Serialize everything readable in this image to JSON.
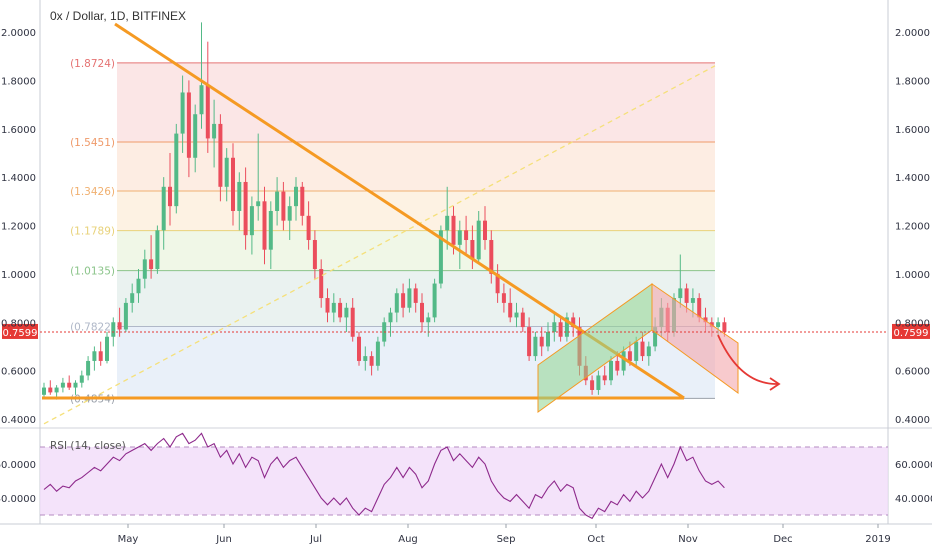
{
  "chart_data": [
    {
      "type": "candlestick",
      "title": "0x / Dollar, 1D, BITFINEX",
      "ylim": [
        0.38,
        2.1
      ],
      "y_ticks": [
        "2.0000",
        "1.8000",
        "1.6000",
        "1.4000",
        "1.2000",
        "1.0000",
        "0.8000",
        "0.6000",
        "0.4000"
      ],
      "y_tick_values": [
        2.0,
        1.8,
        1.6,
        1.4,
        1.2,
        1.0,
        0.8,
        0.6,
        0.4
      ],
      "x_ticks": [
        "May",
        "Jun",
        "Jul",
        "Aug",
        "Sep",
        "Oct",
        "Nov",
        "Dec",
        "2019"
      ],
      "last_price": "0.7599",
      "last_price_value": 0.7599,
      "fib_levels": [
        {
          "label": "(1.8724)",
          "value": 1.8724,
          "color": "#e57373"
        },
        {
          "label": "(1.5451)",
          "value": 1.5451,
          "color": "#ef9a6a"
        },
        {
          "label": "(1.3426)",
          "value": 1.3426,
          "color": "#f0b070"
        },
        {
          "label": "(1.1789)",
          "value": 1.1789,
          "color": "#e8d27a"
        },
        {
          "label": "(1.0135)",
          "value": 1.0135,
          "color": "#8bc48a"
        },
        {
          "label": "(0.7822)",
          "value": 0.7822,
          "color": "#b0b8c8"
        },
        {
          "label": "(0.4854)",
          "value": 0.4854,
          "color": "#9aa0aa"
        }
      ],
      "candles": [
        [
          0.5,
          0.55,
          0.49,
          0.53
        ],
        [
          0.53,
          0.56,
          0.5,
          0.51
        ],
        [
          0.51,
          0.54,
          0.48,
          0.53
        ],
        [
          0.53,
          0.57,
          0.51,
          0.55
        ],
        [
          0.55,
          0.58,
          0.52,
          0.53
        ],
        [
          0.53,
          0.56,
          0.5,
          0.55
        ],
        [
          0.55,
          0.6,
          0.53,
          0.58
        ],
        [
          0.58,
          0.66,
          0.56,
          0.64
        ],
        [
          0.64,
          0.7,
          0.6,
          0.68
        ],
        [
          0.68,
          0.72,
          0.62,
          0.64
        ],
        [
          0.64,
          0.76,
          0.63,
          0.74
        ],
        [
          0.74,
          0.82,
          0.7,
          0.8
        ],
        [
          0.8,
          0.86,
          0.74,
          0.77
        ],
        [
          0.77,
          0.9,
          0.76,
          0.88
        ],
        [
          0.88,
          0.96,
          0.84,
          0.92
        ],
        [
          0.92,
          1.02,
          0.88,
          0.98
        ],
        [
          0.98,
          1.1,
          0.94,
          1.06
        ],
        [
          1.06,
          1.16,
          0.98,
          1.02
        ],
        [
          1.02,
          1.2,
          1.0,
          1.18
        ],
        [
          1.18,
          1.4,
          1.1,
          1.36
        ],
        [
          1.36,
          1.5,
          1.2,
          1.28
        ],
        [
          1.28,
          1.62,
          1.25,
          1.58
        ],
        [
          1.58,
          1.82,
          1.5,
          1.75
        ],
        [
          1.75,
          1.8,
          1.4,
          1.48
        ],
        [
          1.48,
          1.7,
          1.42,
          1.66
        ],
        [
          1.66,
          2.04,
          1.6,
          1.78
        ],
        [
          1.78,
          1.96,
          1.5,
          1.56
        ],
        [
          1.56,
          1.72,
          1.44,
          1.62
        ],
        [
          1.62,
          1.66,
          1.3,
          1.36
        ],
        [
          1.36,
          1.52,
          1.3,
          1.48
        ],
        [
          1.48,
          1.54,
          1.2,
          1.26
        ],
        [
          1.26,
          1.42,
          1.18,
          1.38
        ],
        [
          1.38,
          1.44,
          1.1,
          1.16
        ],
        [
          1.16,
          1.32,
          1.08,
          1.28
        ],
        [
          1.28,
          1.58,
          1.22,
          1.3
        ],
        [
          1.3,
          1.36,
          1.04,
          1.1
        ],
        [
          1.1,
          1.3,
          1.02,
          1.26
        ],
        [
          1.26,
          1.4,
          1.2,
          1.34
        ],
        [
          1.34,
          1.38,
          1.18,
          1.22
        ],
        [
          1.22,
          1.32,
          1.14,
          1.28
        ],
        [
          1.28,
          1.4,
          1.22,
          1.36
        ],
        [
          1.36,
          1.38,
          1.2,
          1.24
        ],
        [
          1.24,
          1.3,
          1.1,
          1.14
        ],
        [
          1.14,
          1.18,
          0.98,
          1.02
        ],
        [
          1.02,
          1.06,
          0.86,
          0.9
        ],
        [
          0.9,
          0.94,
          0.8,
          0.84
        ],
        [
          0.84,
          0.92,
          0.8,
          0.88
        ],
        [
          0.88,
          0.9,
          0.8,
          0.82
        ],
        [
          0.82,
          0.88,
          0.76,
          0.86
        ],
        [
          0.86,
          0.9,
          0.72,
          0.74
        ],
        [
          0.74,
          0.76,
          0.62,
          0.64
        ],
        [
          0.64,
          0.7,
          0.6,
          0.66
        ],
        [
          0.66,
          0.68,
          0.58,
          0.62
        ],
        [
          0.62,
          0.74,
          0.6,
          0.72
        ],
        [
          0.72,
          0.82,
          0.7,
          0.8
        ],
        [
          0.8,
          0.86,
          0.74,
          0.84
        ],
        [
          0.84,
          0.94,
          0.8,
          0.92
        ],
        [
          0.92,
          0.96,
          0.82,
          0.86
        ],
        [
          0.86,
          0.98,
          0.84,
          0.94
        ],
        [
          0.94,
          0.96,
          0.84,
          0.88
        ],
        [
          0.88,
          0.92,
          0.76,
          0.8
        ],
        [
          0.8,
          0.84,
          0.74,
          0.82
        ],
        [
          0.82,
          0.98,
          0.8,
          0.96
        ],
        [
          0.96,
          1.2,
          0.94,
          1.18
        ],
        [
          1.18,
          1.36,
          1.1,
          1.24
        ],
        [
          1.24,
          1.28,
          1.08,
          1.12
        ],
        [
          1.12,
          1.22,
          1.02,
          1.18
        ],
        [
          1.18,
          1.24,
          1.08,
          1.14
        ],
        [
          1.14,
          1.2,
          1.02,
          1.06
        ],
        [
          1.06,
          1.26,
          1.04,
          1.22
        ],
        [
          1.22,
          1.28,
          1.1,
          1.14
        ],
        [
          1.14,
          1.18,
          0.96,
          1.0
        ],
        [
          1.0,
          1.04,
          0.88,
          0.92
        ],
        [
          0.92,
          0.96,
          0.84,
          0.88
        ],
        [
          0.88,
          0.94,
          0.8,
          0.82
        ],
        [
          0.82,
          0.88,
          0.78,
          0.84
        ],
        [
          0.84,
          0.86,
          0.76,
          0.78
        ],
        [
          0.78,
          0.82,
          0.64,
          0.66
        ],
        [
          0.66,
          0.76,
          0.64,
          0.74
        ],
        [
          0.74,
          0.78,
          0.66,
          0.7
        ],
        [
          0.7,
          0.8,
          0.68,
          0.76
        ],
        [
          0.76,
          0.84,
          0.72,
          0.8
        ],
        [
          0.8,
          0.82,
          0.72,
          0.74
        ],
        [
          0.74,
          0.84,
          0.72,
          0.82
        ],
        [
          0.82,
          0.84,
          0.74,
          0.78
        ],
        [
          0.78,
          0.82,
          0.58,
          0.62
        ],
        [
          0.62,
          0.66,
          0.54,
          0.56
        ],
        [
          0.56,
          0.58,
          0.5,
          0.52
        ],
        [
          0.52,
          0.6,
          0.5,
          0.58
        ],
        [
          0.58,
          0.62,
          0.54,
          0.56
        ],
        [
          0.56,
          0.66,
          0.54,
          0.64
        ],
        [
          0.64,
          0.68,
          0.58,
          0.6
        ],
        [
          0.6,
          0.7,
          0.58,
          0.68
        ],
        [
          0.68,
          0.72,
          0.62,
          0.64
        ],
        [
          0.64,
          0.74,
          0.62,
          0.72
        ],
        [
          0.72,
          0.76,
          0.64,
          0.66
        ],
        [
          0.66,
          0.72,
          0.62,
          0.7
        ],
        [
          0.7,
          0.82,
          0.68,
          0.78
        ],
        [
          0.78,
          0.9,
          0.74,
          0.86
        ],
        [
          0.86,
          0.88,
          0.72,
          0.76
        ],
        [
          0.76,
          0.92,
          0.74,
          0.9
        ],
        [
          0.9,
          1.08,
          0.86,
          0.94
        ],
        [
          0.94,
          0.96,
          0.84,
          0.88
        ],
        [
          0.88,
          0.94,
          0.82,
          0.9
        ],
        [
          0.9,
          0.92,
          0.8,
          0.82
        ],
        [
          0.82,
          0.86,
          0.76,
          0.8
        ],
        [
          0.8,
          0.82,
          0.74,
          0.78
        ],
        [
          0.78,
          0.82,
          0.74,
          0.8
        ],
        [
          0.8,
          0.82,
          0.74,
          0.76
        ]
      ]
    },
    {
      "type": "line",
      "title": "RSI (14, close)",
      "ylim": [
        25,
        80
      ],
      "y_ticks": [
        "60.0000",
        "40.0000"
      ],
      "y_tick_values": [
        60,
        40
      ],
      "bands": [
        70,
        30
      ],
      "values": [
        45,
        48,
        44,
        47,
        46,
        50,
        52,
        55,
        58,
        56,
        60,
        64,
        62,
        66,
        68,
        70,
        72,
        68,
        72,
        75,
        70,
        76,
        78,
        72,
        74,
        78,
        70,
        72,
        64,
        68,
        60,
        66,
        58,
        64,
        62,
        52,
        60,
        64,
        58,
        62,
        64,
        58,
        52,
        46,
        40,
        36,
        40,
        36,
        40,
        34,
        30,
        34,
        32,
        40,
        48,
        52,
        58,
        52,
        58,
        54,
        46,
        50,
        60,
        68,
        70,
        62,
        66,
        62,
        58,
        64,
        60,
        50,
        44,
        40,
        38,
        42,
        38,
        34,
        42,
        40,
        46,
        50,
        44,
        48,
        46,
        34,
        30,
        28,
        34,
        32,
        38,
        36,
        42,
        38,
        44,
        40,
        44,
        52,
        60,
        52,
        60,
        70,
        62,
        64,
        56,
        50,
        48,
        50,
        46
      ]
    }
  ]
}
